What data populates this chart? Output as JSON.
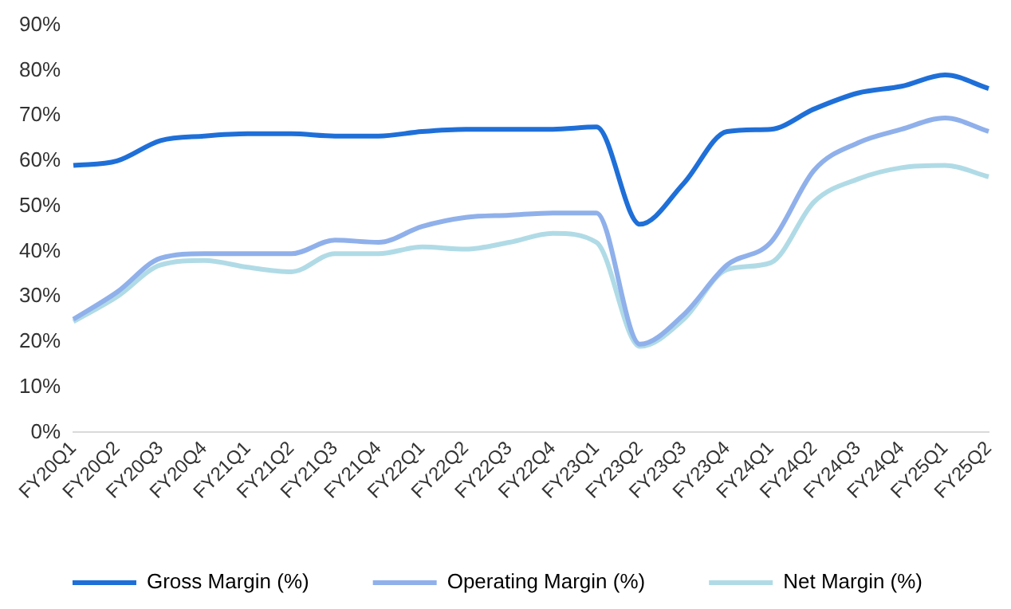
{
  "chart_data": {
    "type": "line",
    "categories": [
      "FY20Q1",
      "FY20Q2",
      "FY20Q3",
      "FY20Q4",
      "FY21Q1",
      "FY21Q2",
      "FY21Q3",
      "FY21Q4",
      "FY22Q1",
      "FY22Q2",
      "FY22Q3",
      "FY22Q4",
      "FY23Q1",
      "FY23Q2",
      "FY23Q3",
      "FY23Q4",
      "FY24Q1",
      "FY24Q2",
      "FY24Q3",
      "FY24Q4",
      "FY25Q1",
      "FY25Q2"
    ],
    "series": [
      {
        "name": "Gross Margin (%)",
        "color": "#1f6fd8",
        "values": [
          59,
          60,
          64.5,
          65.5,
          66,
          66,
          65.5,
          65.5,
          66.5,
          67,
          67,
          67,
          67.5,
          46,
          55,
          66.5,
          67,
          71.5,
          75,
          76.5,
          79,
          76
        ]
      },
      {
        "name": "Operating Margin (%)",
        "color": "#8fb0ea",
        "values": [
          25,
          31,
          38.5,
          39.5,
          39.5,
          39.5,
          42.5,
          42,
          45.5,
          47.5,
          48,
          48.5,
          48.5,
          19.5,
          26,
          37,
          42,
          58,
          64,
          67,
          69.5,
          66.5
        ]
      },
      {
        "name": "Net Margin (%)",
        "color": "#b0dbe6",
        "values": [
          24.5,
          30,
          37,
          38,
          36.5,
          35.5,
          39.5,
          39.5,
          41,
          40.5,
          42,
          44,
          42,
          19,
          25,
          36,
          37.5,
          51,
          56,
          58.5,
          59,
          56.5
        ]
      }
    ],
    "ylim": [
      0,
      90
    ],
    "yticks": [
      {
        "value": 0,
        "label": "0%"
      },
      {
        "value": 10,
        "label": "10%"
      },
      {
        "value": 20,
        "label": "20%"
      },
      {
        "value": 30,
        "label": "30%"
      },
      {
        "value": 40,
        "label": "40%"
      },
      {
        "value": 50,
        "label": "50%"
      },
      {
        "value": 60,
        "label": "60%"
      },
      {
        "value": 70,
        "label": "70%"
      },
      {
        "value": 80,
        "label": "80%"
      },
      {
        "value": 90,
        "label": "90%"
      }
    ],
    "grid": false,
    "legend": "bottom",
    "marker": "none",
    "line_style": "solid"
  }
}
